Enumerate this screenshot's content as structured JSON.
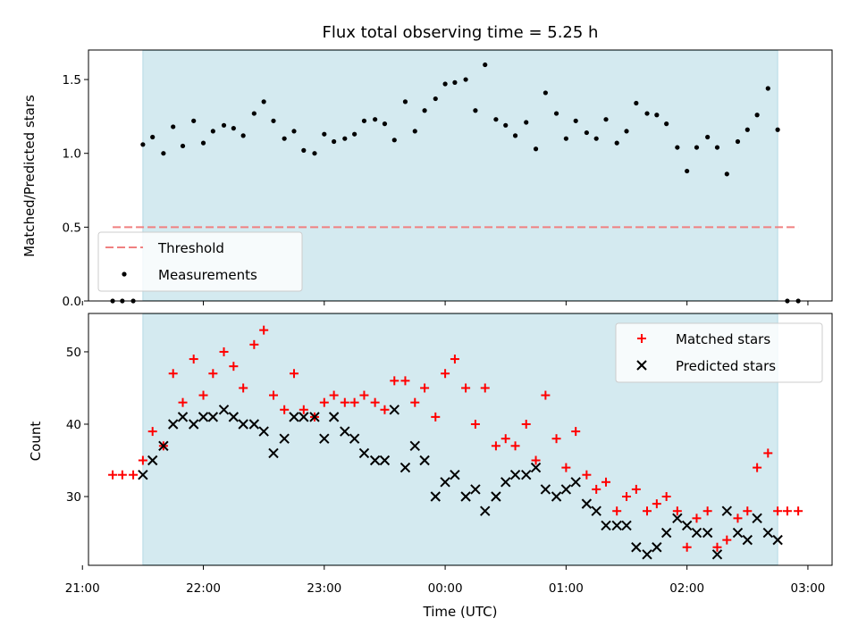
{
  "chart_data": {
    "title": "Flux total observing time = 5.25 h",
    "xlabel": "Time (UTC)",
    "x_unit": "hours since 00:00 UTC",
    "xlim": [
      -2.95,
      3.2
    ],
    "xticks": [
      {
        "value": -3,
        "label": "21:00"
      },
      {
        "value": -2,
        "label": "22:00"
      },
      {
        "value": -1,
        "label": "23:00"
      },
      {
        "value": 0,
        "label": "00:00"
      },
      {
        "value": 1,
        "label": "01:00"
      },
      {
        "value": 2,
        "label": "02:00"
      },
      {
        "value": 3,
        "label": "03:00"
      }
    ],
    "observing_window": {
      "start": -2.5,
      "end": 2.75,
      "color": "#d4eaf0"
    },
    "top_panel": {
      "type": "scatter",
      "ylabel": "Matched/Predicted stars",
      "ylim": [
        0,
        1.7
      ],
      "yticks": [
        {
          "value": 0.0,
          "label": "0.0"
        },
        {
          "value": 0.5,
          "label": "0.5"
        },
        {
          "value": 1.0,
          "label": "1.0"
        },
        {
          "value": 1.5,
          "label": "1.5"
        }
      ],
      "threshold": {
        "name": "Threshold",
        "value": 0.5,
        "x_range": [
          -2.75,
          2.92
        ],
        "color": "#f08080"
      },
      "series": [
        {
          "name": "Measurements",
          "color": "#000000",
          "x": [
            -2.75,
            -2.67,
            -2.58,
            -2.5,
            -2.42,
            -2.33,
            -2.25,
            -2.17,
            -2.08,
            -2.0,
            -1.92,
            -1.83,
            -1.75,
            -1.67,
            -1.58,
            -1.5,
            -1.42,
            -1.33,
            -1.25,
            -1.17,
            -1.08,
            -1.0,
            -0.92,
            -0.83,
            -0.75,
            -0.67,
            -0.58,
            -0.5,
            -0.42,
            -0.33,
            -0.25,
            -0.17,
            -0.08,
            0.0,
            0.08,
            0.17,
            0.25,
            0.33,
            0.42,
            0.5,
            0.58,
            0.67,
            0.75,
            0.83,
            0.92,
            1.0,
            1.08,
            1.17,
            1.25,
            1.33,
            1.42,
            1.5,
            1.58,
            1.67,
            1.75,
            1.83,
            1.92,
            2.0,
            2.08,
            2.17,
            2.25,
            2.33,
            2.42,
            2.5,
            2.58,
            2.67,
            2.75,
            2.83,
            2.92
          ],
          "y": [
            0.0,
            0.0,
            0.0,
            1.06,
            1.11,
            1.0,
            1.18,
            1.05,
            1.22,
            1.07,
            1.15,
            1.19,
            1.17,
            1.12,
            1.27,
            1.35,
            1.22,
            1.1,
            1.15,
            1.02,
            1.0,
            1.13,
            1.08,
            1.1,
            1.13,
            1.22,
            1.23,
            1.2,
            1.09,
            1.35,
            1.15,
            1.29,
            1.37,
            1.47,
            1.48,
            1.5,
            1.29,
            1.6,
            1.23,
            1.19,
            1.12,
            1.21,
            1.03,
            1.41,
            1.27,
            1.1,
            1.22,
            1.14,
            1.1,
            1.23,
            1.07,
            1.15,
            1.34,
            1.27,
            1.26,
            1.2,
            1.04,
            0.88,
            1.04,
            1.11,
            1.04,
            0.86,
            1.08,
            1.16,
            1.26,
            1.44,
            1.16,
            0.0,
            0.0
          ]
        }
      ],
      "legend": {
        "position": "lower-left",
        "entries": [
          "Threshold",
          "Measurements"
        ]
      }
    },
    "bottom_panel": {
      "type": "scatter",
      "ylabel": "Count",
      "ylim": [
        20.5,
        55.3
      ],
      "yticks": [
        {
          "value": 30,
          "label": "30"
        },
        {
          "value": 40,
          "label": "40"
        },
        {
          "value": 50,
          "label": "50"
        }
      ],
      "series": [
        {
          "name": "Matched stars",
          "marker": "+",
          "color": "#ff0000",
          "x": [
            -2.75,
            -2.67,
            -2.58,
            -2.5,
            -2.42,
            -2.33,
            -2.25,
            -2.17,
            -2.08,
            -2.0,
            -1.92,
            -1.83,
            -1.75,
            -1.67,
            -1.58,
            -1.5,
            -1.42,
            -1.33,
            -1.25,
            -1.17,
            -1.08,
            -1.0,
            -0.92,
            -0.83,
            -0.75,
            -0.67,
            -0.58,
            -0.5,
            -0.42,
            -0.33,
            -0.25,
            -0.17,
            -0.08,
            0.0,
            0.08,
            0.17,
            0.25,
            0.33,
            0.42,
            0.5,
            0.58,
            0.67,
            0.75,
            0.83,
            0.92,
            1.0,
            1.08,
            1.17,
            1.25,
            1.33,
            1.42,
            1.5,
            1.58,
            1.67,
            1.75,
            1.83,
            1.92,
            2.0,
            2.08,
            2.17,
            2.25,
            2.33,
            2.42,
            2.5,
            2.58,
            2.67,
            2.75,
            2.83,
            2.92
          ],
          "y": [
            33,
            33,
            33,
            35,
            39,
            37,
            47,
            43,
            49,
            44,
            47,
            50,
            48,
            45,
            51,
            53,
            44,
            42,
            47,
            42,
            41,
            43,
            44,
            43,
            43,
            44,
            43,
            42,
            46,
            46,
            43,
            45,
            41,
            47,
            49,
            45,
            40,
            45,
            37,
            38,
            37,
            40,
            35,
            44,
            38,
            34,
            39,
            33,
            31,
            32,
            28,
            30,
            31,
            28,
            29,
            30,
            28,
            23,
            27,
            28,
            23,
            24,
            27,
            28,
            34,
            36,
            28,
            28,
            28
          ],
          "count_in_window": 64
        },
        {
          "name": "Predicted stars",
          "marker": "x",
          "color": "#000000",
          "x": [
            -2.5,
            -2.42,
            -2.33,
            -2.25,
            -2.17,
            -2.08,
            -2.0,
            -1.92,
            -1.83,
            -1.75,
            -1.67,
            -1.58,
            -1.5,
            -1.42,
            -1.33,
            -1.25,
            -1.17,
            -1.08,
            -1.0,
            -0.92,
            -0.83,
            -0.75,
            -0.67,
            -0.58,
            -0.5,
            -0.42,
            -0.33,
            -0.25,
            -0.17,
            -0.08,
            0.0,
            0.08,
            0.17,
            0.25,
            0.33,
            0.42,
            0.5,
            0.58,
            0.67,
            0.75,
            0.83,
            0.92,
            1.0,
            1.08,
            1.17,
            1.25,
            1.33,
            1.42,
            1.5,
            1.58,
            1.67,
            1.75,
            1.83,
            1.92,
            2.0,
            2.08,
            2.17,
            2.25,
            2.33,
            2.42,
            2.5,
            2.58,
            2.67,
            2.75
          ],
          "y": [
            33,
            35,
            37,
            40,
            41,
            40,
            41,
            41,
            42,
            41,
            40,
            40,
            39,
            36,
            38,
            41,
            41,
            41,
            38,
            41,
            39,
            38,
            36,
            35,
            35,
            42,
            34,
            37,
            35,
            30,
            32,
            33,
            30,
            31,
            28,
            30,
            32,
            33,
            33,
            34,
            31,
            30,
            31,
            32,
            29,
            28,
            26,
            26,
            26,
            23,
            22,
            23,
            25,
            27,
            26,
            25,
            25,
            22,
            28,
            25,
            24,
            27,
            25,
            24
          ]
        }
      ],
      "legend": {
        "position": "upper-right",
        "entries": [
          "Matched stars",
          "Predicted stars"
        ]
      }
    }
  }
}
